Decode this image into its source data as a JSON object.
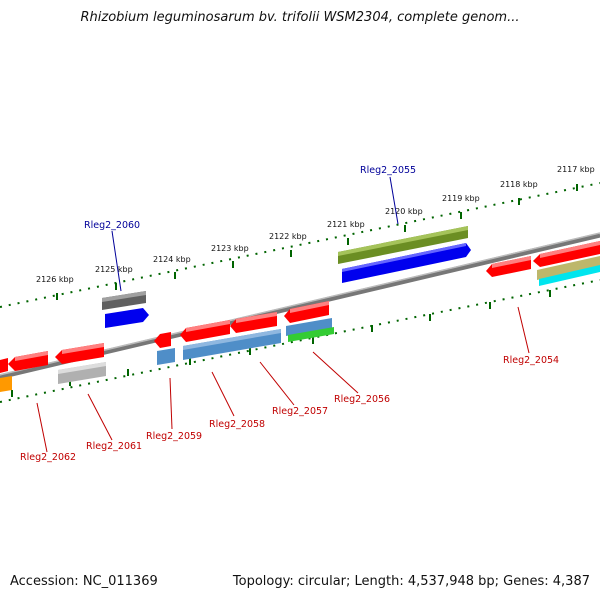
{
  "title": "Rhizobium leguminosarum bv. trifolii WSM2304, complete genom...",
  "footer": {
    "accession": "Accession: NC_011369",
    "stats": "Topology: circular; Length: 4,537,948 bp; Genes: 4,387"
  },
  "kbp_labels": [
    "2126 kbp",
    "2125 kbp",
    "2124 kbp",
    "2123 kbp",
    "2122 kbp",
    "2121 kbp",
    "2120 kbp",
    "2119 kbp",
    "2118 kbp",
    "2117 kbp"
  ],
  "gene_labels": {
    "forward": [
      "Rleg2_2060",
      "Rleg2_2055"
    ],
    "reverse": [
      "Rleg2_2062",
      "Rleg2_2061",
      "Rleg2_2059",
      "Rleg2_2058",
      "Rleg2_2057",
      "Rleg2_2056",
      "Rleg2_2054"
    ]
  },
  "colors": {
    "cds": "#ff0000",
    "steelblue": "#4f8ec8",
    "blue": "#0000ee",
    "olive": "#6b8e23",
    "gray": "#666666",
    "lightgray": "#b0b0b0",
    "green": "#33cc33",
    "tan": "#bdb76b",
    "cyan": "#00e5ee",
    "orange": "#ff9900",
    "backbone": "#888888",
    "tick_green": "#006400",
    "label_red": "#c00000",
    "label_blue": "#000099"
  }
}
